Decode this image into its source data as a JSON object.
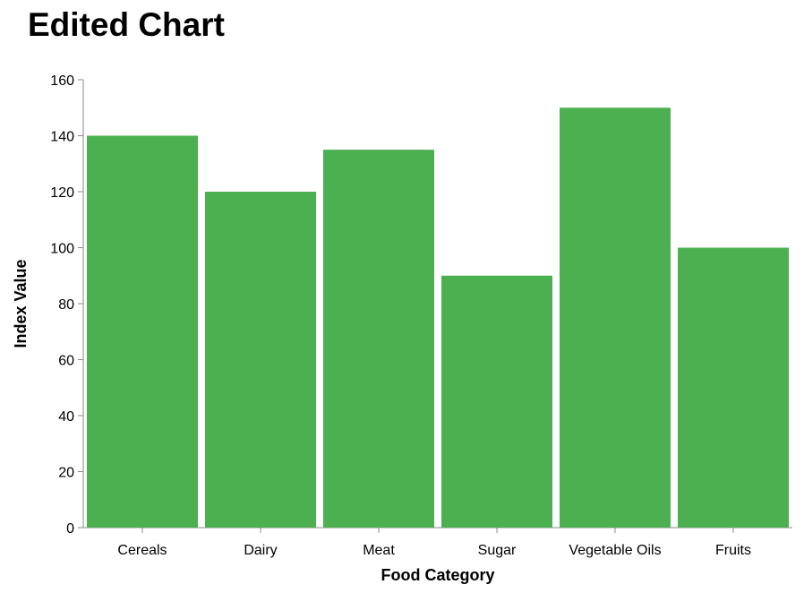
{
  "title": "Edited Chart",
  "chart_data": {
    "type": "bar",
    "title": "Edited Chart",
    "xlabel": "Food Category",
    "ylabel": "Index Value",
    "categories": [
      "Cereals",
      "Dairy",
      "Meat",
      "Sugar",
      "Vegetable Oils",
      "Fruits"
    ],
    "values": [
      140,
      120,
      135,
      90,
      150,
      100
    ],
    "ylim": [
      0,
      160
    ],
    "yticks": [
      0,
      20,
      40,
      60,
      80,
      100,
      120,
      140,
      160
    ],
    "grid": false,
    "legend": "none",
    "bar_color": "#4caf50",
    "axis_color": "#888888"
  }
}
